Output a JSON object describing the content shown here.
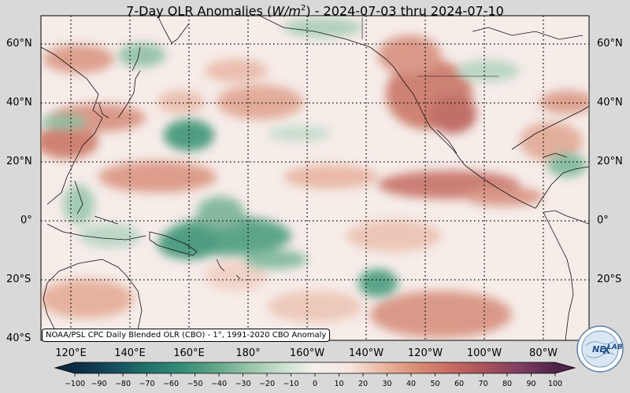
{
  "title_prefix": "7-Day OLR Anomalies (",
  "title_unit_main": "W/m",
  "title_unit_exp": "2",
  "title_suffix": ") - 2024-07-03 thru 2024-07-10",
  "latitude_labels": [
    "60°N",
    "40°N",
    "20°N",
    "0°",
    "20°S",
    "40°S"
  ],
  "longitude_labels": [
    "120°E",
    "140°E",
    "160°E",
    "180°",
    "160°W",
    "140°W",
    "120°W",
    "100°W",
    "80°W"
  ],
  "credit": "NOAA/PSL CPC Daily Blended OLR (CBO) - 1°, 1991-2020 CBO Anomaly",
  "colorbar": {
    "ticks": [
      "−100",
      "−90",
      "−80",
      "−70",
      "−60",
      "−50",
      "−40",
      "−30",
      "−20",
      "−10",
      "0",
      "10",
      "20",
      "30",
      "40",
      "50",
      "60",
      "70",
      "80",
      "90",
      "100"
    ],
    "min": -100,
    "max": 100,
    "stops": [
      "#0b2940",
      "#15495c",
      "#1f6e6a",
      "#2f8a76",
      "#5ca386",
      "#93c2a6",
      "#c7dfca",
      "#f5f0ec",
      "#f7e6df",
      "#e9b59f",
      "#d98c76",
      "#c66a62",
      "#a6505a",
      "#7e3d63",
      "#4e2348"
    ]
  },
  "logo": {
    "text_ne": "NE",
    "text_x": "X",
    "text_lab": "LAB"
  },
  "map_colors": {
    "ocean_base": "#f6ece8",
    "positive_anomaly": "#c9705e",
    "negative_anomaly": "#3c9477"
  },
  "gridlines": "dotted"
}
